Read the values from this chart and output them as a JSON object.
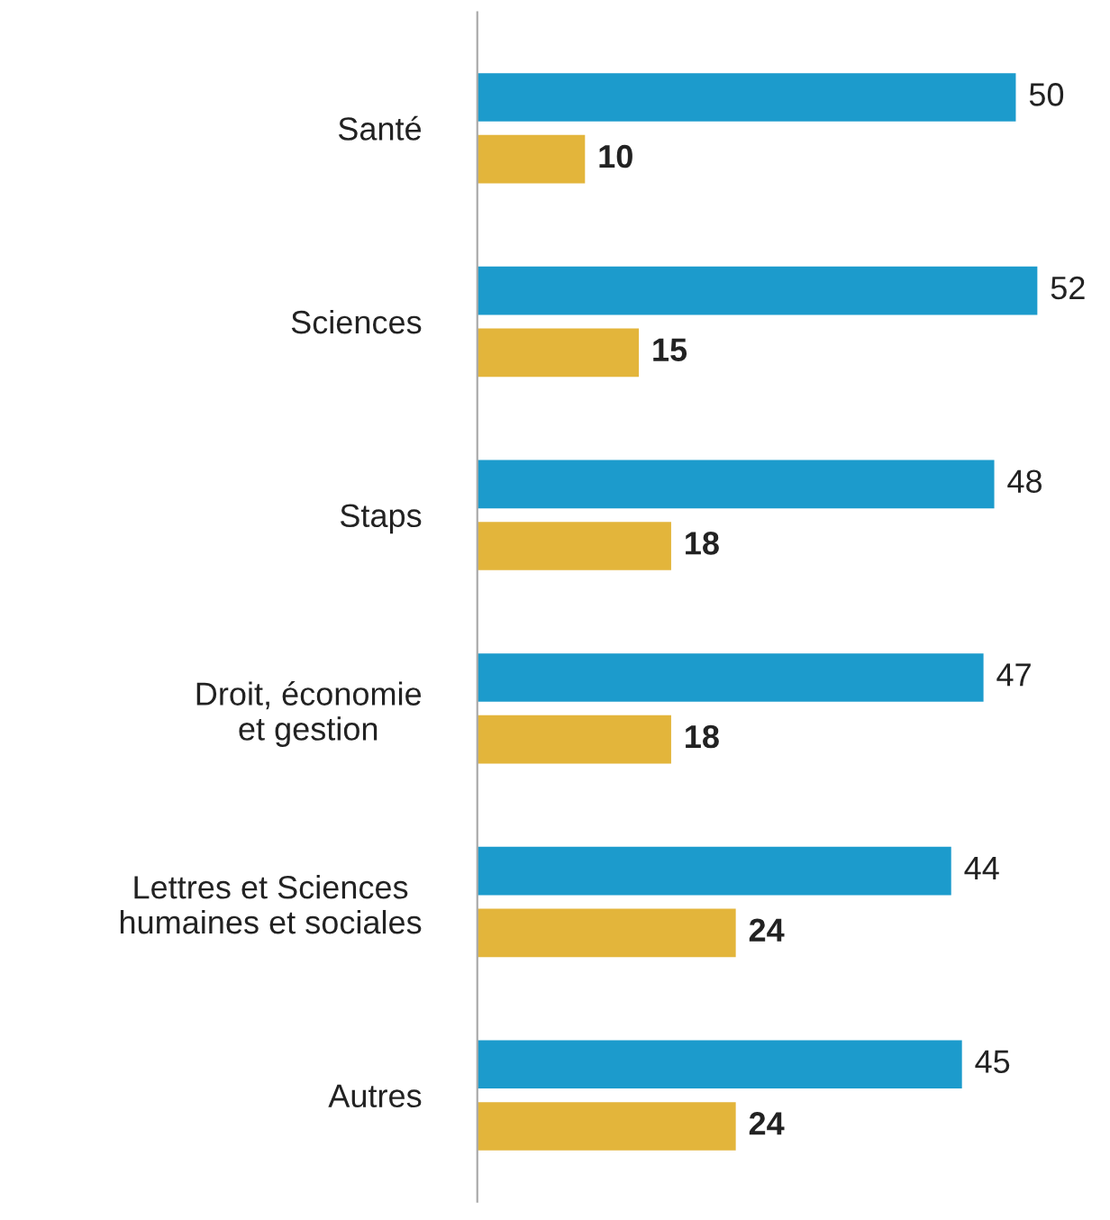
{
  "chart_data": {
    "type": "bar",
    "orientation": "horizontal",
    "data_labels": true,
    "grid": false,
    "legend": false,
    "categories": [
      "Santé",
      "Sciences",
      "Staps",
      "Droit, économie\net gestion",
      "Lettres et Sciences\nhumaines et sociales",
      "Autres"
    ],
    "series": [
      {
        "color": "#1c9bcc",
        "values": [
          50,
          52,
          48,
          47,
          44,
          45
        ]
      },
      {
        "color": "#e3b53b",
        "values": [
          10,
          15,
          18,
          18,
          24,
          24
        ]
      }
    ]
  }
}
